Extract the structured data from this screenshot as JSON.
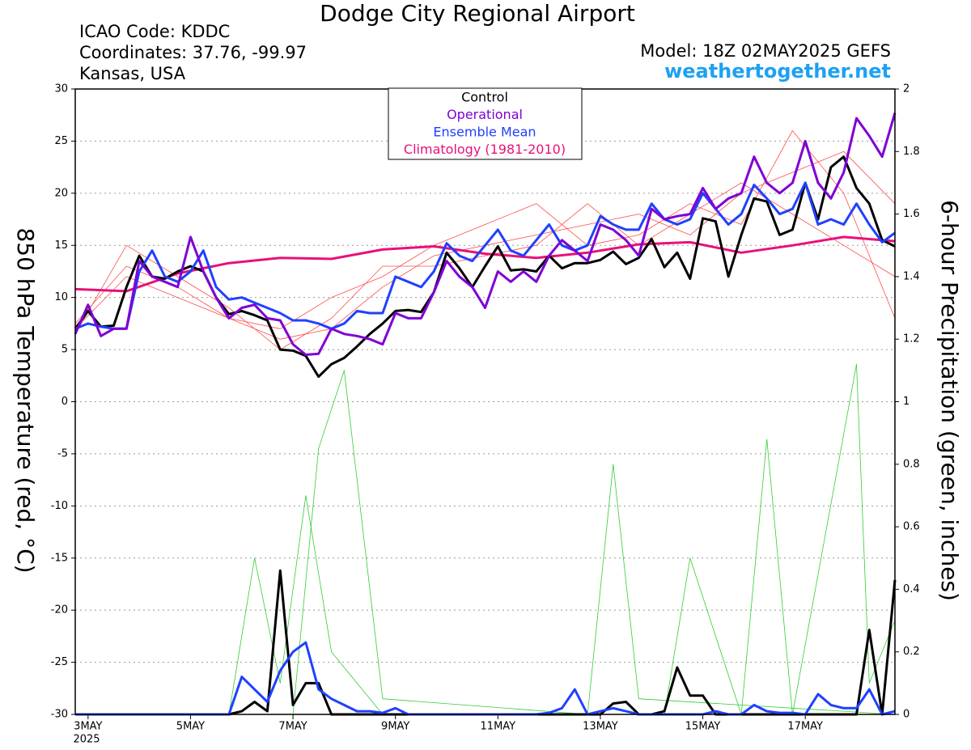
{
  "chart_data": {
    "type": "line",
    "title": "Dodge City Regional Airport",
    "info_lines": [
      "ICAO Code: KDDC",
      "Coordinates: 37.76, -99.97",
      "Kansas, USA"
    ],
    "model": "Model: 18Z 02MAY2025 GEFS",
    "source": "weathertogether.net",
    "ylabel": "850 hPa Temperature (red, °C)",
    "y2label": "6-hour Precipitation (green, inches)",
    "year_label": "2025",
    "grid": true,
    "x": [
      0,
      0.25,
      0.5,
      0.75,
      1,
      1.25,
      1.5,
      1.75,
      2,
      2.25,
      2.5,
      2.75,
      3,
      3.25,
      3.5,
      3.75,
      4,
      4.25,
      4.5,
      4.75,
      5,
      5.25,
      5.5,
      5.75,
      6,
      6.25,
      6.5,
      6.75,
      7,
      7.25,
      7.5,
      7.75,
      8,
      8.25,
      8.5,
      8.75,
      9,
      9.25,
      9.5,
      9.75,
      10,
      10.25,
      10.5,
      10.75,
      11,
      11.25,
      11.5,
      11.75,
      12,
      12.25,
      12.5,
      12.75,
      13,
      13.25,
      13.5,
      13.75,
      14,
      14.25,
      14.5,
      14.75,
      15,
      15.25,
      15.5,
      15.75,
      16
    ],
    "xlim": [
      0,
      16
    ],
    "xticks": [
      {
        "value": 0.25,
        "label": "3MAY"
      },
      {
        "value": 2.25,
        "label": "5MAY"
      },
      {
        "value": 4.25,
        "label": "7MAY"
      },
      {
        "value": 6.25,
        "label": "9MAY"
      },
      {
        "value": 8.25,
        "label": "11MAY"
      },
      {
        "value": 10.25,
        "label": "13MAY"
      },
      {
        "value": 12.25,
        "label": "15MAY"
      },
      {
        "value": 14.25,
        "label": "17MAY"
      }
    ],
    "ylim": [
      -30,
      30
    ],
    "yticks": [
      -30,
      -25,
      -20,
      -15,
      -10,
      -5,
      0,
      5,
      10,
      15,
      20,
      25,
      30
    ],
    "y2lim": [
      0,
      2
    ],
    "y2ticks": [
      0,
      0.2,
      0.4,
      0.6,
      0.8,
      1,
      1.2,
      1.4,
      1.6,
      1.8,
      2
    ],
    "series": [
      {
        "color": "#ff4d4d",
        "x": [
          0,
          1,
          2,
          3,
          4,
          5,
          6,
          7,
          8,
          9,
          10,
          11,
          12,
          13,
          14,
          15,
          16
        ],
        "values": [
          7.5,
          13,
          11,
          8,
          6,
          7,
          11,
          14,
          15,
          16,
          17,
          18,
          16,
          20,
          22,
          24,
          19
        ]
      },
      {
        "color": "#ff4d4d",
        "x": [
          0,
          1,
          2,
          3,
          4,
          5,
          6,
          7,
          8,
          9,
          10,
          11,
          12,
          13,
          14,
          15,
          16
        ],
        "values": [
          6.5,
          15,
          12,
          9,
          5,
          8,
          13,
          13,
          14,
          15,
          19,
          15,
          18,
          21,
          18,
          15,
          12
        ]
      },
      {
        "color": "#ff4d4d",
        "x": [
          0,
          1,
          2,
          3,
          4,
          5,
          6,
          7,
          8,
          9,
          10,
          11,
          12,
          13,
          14,
          15,
          16
        ],
        "values": [
          7,
          12,
          10,
          8,
          7,
          10,
          12,
          15,
          17,
          19,
          15,
          16,
          19,
          17,
          26,
          20,
          8
        ]
      },
      {
        "color": "#33cc33",
        "axis": "y2",
        "x": [
          0,
          3,
          3.5,
          4,
          4.5,
          5,
          6,
          16
        ],
        "values": [
          0,
          0,
          0.5,
          0.1,
          0.7,
          0.2,
          0,
          0
        ]
      },
      {
        "color": "#33cc33",
        "axis": "y2",
        "x": [
          0,
          4.25,
          4.75,
          5.25,
          6,
          10,
          10.5,
          11,
          16
        ],
        "values": [
          0,
          0,
          0.85,
          1.1,
          0.05,
          0,
          0.8,
          0.05,
          0
        ]
      },
      {
        "color": "#33cc33",
        "axis": "y2",
        "x": [
          0,
          11.5,
          12,
          13,
          13.5,
          14,
          15.25,
          15.5,
          16
        ],
        "values": [
          0,
          0,
          0.5,
          0,
          0.88,
          0,
          1.12,
          0.1,
          0.3
        ]
      },
      {
        "color": "#000000",
        "axis": "y2",
        "values": [
          0,
          0,
          0,
          0,
          0,
          0,
          0,
          0,
          0,
          0,
          0,
          0,
          0,
          0.01,
          0.04,
          0.01,
          0.46,
          0.03,
          0.1,
          0.1,
          0,
          0,
          0,
          0,
          0,
          0,
          0,
          0,
          0,
          0,
          0,
          0,
          0,
          0,
          0,
          0,
          0,
          0,
          0,
          0,
          0,
          0,
          0.035,
          0.04,
          0,
          0,
          0.01,
          0.15,
          0.06,
          0.06,
          0,
          0,
          0,
          0,
          0,
          0,
          0,
          0,
          0,
          0,
          0,
          0,
          0.27,
          0,
          0.43
        ]
      },
      {
        "color": "#2040ff",
        "axis": "y2",
        "values": [
          0,
          0,
          0,
          0,
          0,
          0,
          0,
          0,
          0,
          0,
          0,
          0,
          0,
          0.12,
          0.08,
          0.04,
          0.14,
          0.2,
          0.23,
          0.08,
          0.05,
          0.03,
          0.01,
          0.01,
          0.005,
          0.02,
          0,
          0,
          0,
          0,
          0,
          0,
          0,
          0,
          0,
          0,
          0,
          0.005,
          0.02,
          0.08,
          0,
          0.01,
          0.02,
          0.01,
          0,
          0,
          0,
          0,
          0,
          0,
          0.01,
          0,
          0,
          0.03,
          0.01,
          0.005,
          0.005,
          0,
          0.065,
          0.03,
          0.02,
          0.02,
          0.08,
          0,
          0.01
        ]
      },
      {
        "name": "Climatology (1981-2010)",
        "color": "#e8107a",
        "x": [
          0,
          1,
          2,
          3,
          4,
          5,
          6,
          7,
          8,
          9,
          10,
          11,
          12,
          13,
          14,
          15,
          16
        ],
        "values": [
          10.8,
          10.6,
          12.3,
          13.3,
          13.8,
          13.7,
          14.6,
          14.9,
          14.2,
          13.8,
          14.3,
          15.1,
          15.3,
          14.3,
          15.0,
          15.8,
          15.4
        ]
      },
      {
        "name": "Control",
        "color": "#000000",
        "values": [
          7,
          8.7,
          7.2,
          7.3,
          11,
          14,
          12,
          11.8,
          12.5,
          13,
          12.5,
          10,
          8.4,
          8.7,
          8.3,
          7.8,
          5,
          4.9,
          4.4,
          2.4,
          3.6,
          4.2,
          5.3,
          6.5,
          7.5,
          8.7,
          8.8,
          8.6,
          10.5,
          14.3,
          12.8,
          11,
          13,
          14.9,
          12.6,
          12.7,
          12.5,
          14,
          12.8,
          13.3,
          13.3,
          13.6,
          14.4,
          13.2,
          13.8,
          15.6,
          12.9,
          14.3,
          11.8,
          17.6,
          17.3,
          12,
          16,
          19.5,
          19.2,
          16,
          16.5,
          21,
          17.5,
          22.5,
          23.5,
          20.5,
          19,
          15.5,
          14.9
        ]
      },
      {
        "name": "Ensemble Mean",
        "color": "#2040ff",
        "values": [
          7,
          7.5,
          7.2,
          7,
          7,
          12.5,
          14.5,
          12,
          11.5,
          12.5,
          14.5,
          11,
          9.8,
          10,
          9.5,
          9,
          8.5,
          7.8,
          7.8,
          7.5,
          7,
          7.5,
          8.7,
          8.5,
          8.5,
          12,
          11.5,
          11,
          12.5,
          15.2,
          14,
          13.5,
          15,
          16.5,
          14.5,
          14,
          15.5,
          17,
          15,
          14.5,
          15,
          17.8,
          17,
          16.5,
          16.5,
          19,
          17.5,
          17,
          17.5,
          20,
          18.5,
          17,
          18,
          20.8,
          19.5,
          18,
          18.5,
          21,
          17,
          17.5,
          17,
          19,
          17,
          15.3,
          16.2
        ]
      },
      {
        "name": "Operational",
        "color": "#7f00d4",
        "values": [
          6.5,
          9.3,
          6.3,
          7,
          7,
          13.5,
          12,
          11.5,
          11,
          15.8,
          12.5,
          10,
          8,
          9,
          9.3,
          8,
          7.8,
          5.5,
          4.5,
          4.6,
          7,
          6.5,
          6.3,
          6,
          5.5,
          8.5,
          8,
          8,
          10.5,
          13.5,
          12,
          11,
          9,
          12.5,
          11.5,
          12.5,
          11.5,
          14,
          15.5,
          14.5,
          13.5,
          17,
          16.5,
          15.5,
          14,
          18.5,
          17.5,
          17.8,
          18,
          20.5,
          18.5,
          19.5,
          20,
          23.5,
          21,
          20,
          21,
          25,
          21,
          19.5,
          22,
          27.2,
          25.5,
          23.5,
          27.7
        ]
      }
    ]
  }
}
